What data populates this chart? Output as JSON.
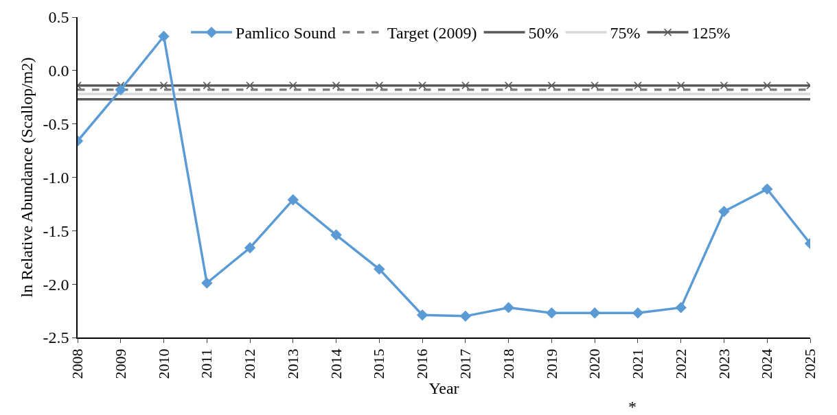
{
  "chart_data": {
    "type": "line",
    "xlabel": "Year",
    "ylabel": "ln Relative Abundance (Scallop/m2)",
    "categories": [
      "2008",
      "2009",
      "2010",
      "2011",
      "2012",
      "2013",
      "2014",
      "2015",
      "2016",
      "2017",
      "2018",
      "2019",
      "2020",
      "2021",
      "2022",
      "2023",
      "2024",
      "2025"
    ],
    "series": [
      {
        "name": "Pamlico Sound",
        "color": "#5b9bd5",
        "marker": "diamond",
        "line_style": "solid",
        "values": [
          -0.66,
          -0.18,
          0.32,
          -1.99,
          -1.66,
          -1.21,
          -1.54,
          -1.86,
          -2.29,
          -2.3,
          -2.22,
          -2.27,
          -2.27,
          -2.27,
          -2.22,
          -1.32,
          -1.11,
          -1.62
        ]
      },
      {
        "name": "Target (2009)",
        "color": "#808080",
        "marker": "none",
        "line_style": "dashed",
        "values": [
          -0.18,
          -0.18,
          -0.18,
          -0.18,
          -0.18,
          -0.18,
          -0.18,
          -0.18,
          -0.18,
          -0.18,
          -0.18,
          -0.18,
          -0.18,
          -0.18,
          -0.18,
          -0.18,
          -0.18,
          -0.18
        ]
      },
      {
        "name": "50%",
        "color": "#595959",
        "marker": "none",
        "line_style": "solid",
        "values": [
          -0.27,
          -0.27,
          -0.27,
          -0.27,
          -0.27,
          -0.27,
          -0.27,
          -0.27,
          -0.27,
          -0.27,
          -0.27,
          -0.27,
          -0.27,
          -0.27,
          -0.27,
          -0.27,
          -0.27,
          -0.27
        ]
      },
      {
        "name": "75%",
        "color": "#d9d9d9",
        "marker": "none",
        "line_style": "solid",
        "values": [
          -0.22,
          -0.22,
          -0.22,
          -0.22,
          -0.22,
          -0.22,
          -0.22,
          -0.22,
          -0.22,
          -0.22,
          -0.22,
          -0.22,
          -0.22,
          -0.22,
          -0.22,
          -0.22,
          -0.22,
          -0.22
        ]
      },
      {
        "name": "125%",
        "color": "#595959",
        "marker": "cross",
        "line_style": "solid",
        "values": [
          -0.14,
          -0.14,
          -0.14,
          -0.14,
          -0.14,
          -0.14,
          -0.14,
          -0.14,
          -0.14,
          -0.14,
          -0.14,
          -0.14,
          -0.14,
          -0.14,
          -0.14,
          -0.14,
          -0.14,
          -0.14
        ]
      }
    ],
    "ylim": [
      -2.5,
      0.5
    ],
    "yticks": [
      {
        "value": -2.5,
        "label": "-2.5"
      },
      {
        "value": -2.0,
        "label": "-2.0"
      },
      {
        "value": -1.5,
        "label": "-1.5"
      },
      {
        "value": -1.0,
        "label": "-1.0"
      },
      {
        "value": -0.5,
        "label": "-0.5"
      },
      {
        "value": 0.0,
        "label": "0.0"
      },
      {
        "value": 0.5,
        "label": "0.5"
      }
    ],
    "legend": "top",
    "annotations": [
      "*"
    ]
  }
}
